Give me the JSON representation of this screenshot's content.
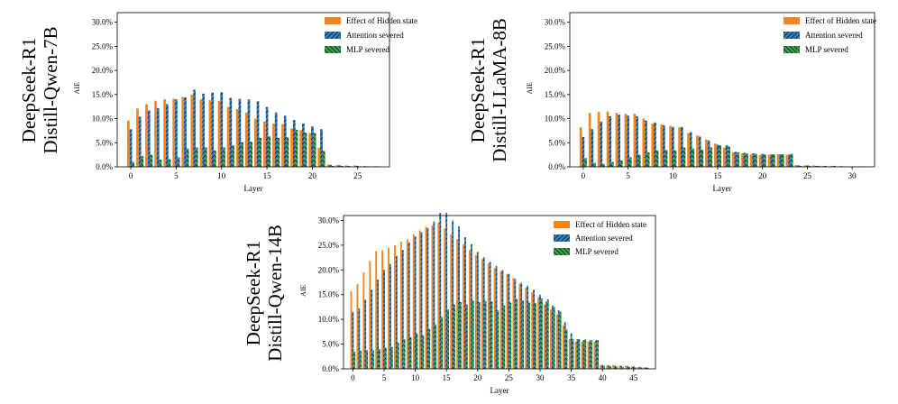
{
  "colors": {
    "hidden": "#f5841f",
    "attention": "#2f7fc1",
    "mlp": "#36a34a",
    "hatch": "#1a1a1a",
    "axis": "#000000"
  },
  "chart_data": [
    {
      "id": "qwen7b",
      "type": "bar",
      "model_label_line1": "DeepSeek-R1",
      "model_label_line2": "Distill-Qwen-7B",
      "xlabel": "Layer",
      "ylabel": "AIE",
      "ylim": [
        0,
        0.32
      ],
      "yticks": [
        0,
        0.05,
        0.1,
        0.15,
        0.2,
        0.25,
        0.3
      ],
      "ytick_labels": [
        "0.0%",
        "5.0%",
        "10.0%",
        "15.0%",
        "20.0%",
        "25.0%",
        "30.0%"
      ],
      "xlim": [
        -1.5,
        28.5
      ],
      "xticks": [
        0,
        5,
        10,
        15,
        20,
        25
      ],
      "xtick_labels": [
        "0",
        "5",
        "10",
        "15",
        "20",
        "25"
      ],
      "legend": [
        "Effect of Hidden state",
        "Attention severed",
        "MLP severed"
      ],
      "legend_position": "top-right",
      "series": [
        {
          "name": "Effect of Hidden state",
          "values": [
            0.096,
            0.121,
            0.13,
            0.137,
            0.14,
            0.141,
            0.145,
            0.15,
            0.14,
            0.138,
            0.137,
            0.124,
            0.12,
            0.112,
            0.1,
            0.094,
            0.09,
            0.089,
            0.08,
            0.076,
            0.07,
            0.04,
            0.005,
            0.004,
            0.003,
            0.003,
            0.002,
            0.001
          ]
        },
        {
          "name": "Attention severed",
          "values": [
            0.078,
            0.104,
            0.117,
            0.122,
            0.13,
            0.14,
            0.144,
            0.16,
            0.152,
            0.154,
            0.155,
            0.143,
            0.141,
            0.14,
            0.136,
            0.124,
            0.113,
            0.106,
            0.097,
            0.09,
            0.084,
            0.078,
            0.004,
            0.003,
            0.002,
            0.002,
            0.001,
            0.001
          ]
        },
        {
          "name": "MLP severed",
          "values": [
            0.01,
            0.022,
            0.025,
            0.015,
            0.016,
            0.02,
            0.038,
            0.04,
            0.04,
            0.034,
            0.04,
            0.045,
            0.051,
            0.052,
            0.06,
            0.063,
            0.06,
            0.061,
            0.077,
            0.071,
            0.07,
            0.033,
            0.002,
            0.002,
            0.001,
            0.001,
            0.001,
            0.001
          ]
        }
      ]
    },
    {
      "id": "llama8b",
      "type": "bar",
      "model_label_line1": "DeepSeek-R1",
      "model_label_line2": "Distill-LLaMA-8B",
      "xlabel": "Layer",
      "ylabel": "AIE",
      "ylim": [
        0,
        0.32
      ],
      "yticks": [
        0,
        0.05,
        0.1,
        0.15,
        0.2,
        0.25,
        0.3
      ],
      "ytick_labels": [
        "0.0%",
        "5.0%",
        "10.0%",
        "15.0%",
        "20.0%",
        "25.0%",
        "30.0%"
      ],
      "xlim": [
        -1.5,
        32.5
      ],
      "xticks": [
        0,
        5,
        10,
        15,
        20,
        25,
        30
      ],
      "xtick_labels": [
        "0",
        "5",
        "10",
        "15",
        "20",
        "25",
        "30"
      ],
      "legend": [
        "Effect of Hidden state",
        "Attention severed",
        "MLP severed"
      ],
      "legend_position": "top-right",
      "series": [
        {
          "name": "Effect of Hidden state",
          "values": [
            0.082,
            0.112,
            0.114,
            0.115,
            0.112,
            0.11,
            0.11,
            0.1,
            0.09,
            0.088,
            0.085,
            0.082,
            0.07,
            0.065,
            0.057,
            0.048,
            0.04,
            0.03,
            0.028,
            0.026,
            0.025,
            0.025,
            0.026,
            0.025,
            0.004,
            0.003,
            0.003,
            0.002,
            0.002,
            0.002,
            0.001,
            0.001
          ]
        },
        {
          "name": "Attention severed",
          "values": [
            0.062,
            0.078,
            0.094,
            0.105,
            0.108,
            0.106,
            0.105,
            0.096,
            0.092,
            0.086,
            0.083,
            0.083,
            0.072,
            0.063,
            0.055,
            0.046,
            0.045,
            0.031,
            0.029,
            0.028,
            0.027,
            0.026,
            0.026,
            0.026,
            0.003,
            0.003,
            0.002,
            0.002,
            0.002,
            0.001,
            0.001,
            0.001
          ]
        },
        {
          "name": "MLP severed",
          "values": [
            0.018,
            0.008,
            0.006,
            0.01,
            0.013,
            0.02,
            0.025,
            0.03,
            0.034,
            0.035,
            0.034,
            0.04,
            0.038,
            0.036,
            0.04,
            0.045,
            0.042,
            0.03,
            0.028,
            0.027,
            0.026,
            0.026,
            0.026,
            0.027,
            0.002,
            0.002,
            0.002,
            0.001,
            0.001,
            0.001,
            0.001,
            0.001
          ]
        }
      ]
    },
    {
      "id": "qwen14b",
      "type": "bar",
      "model_label_line1": "DeepSeek-R1",
      "model_label_line2": "Distill-Qwen-14B",
      "xlabel": "Layer",
      "ylabel": "AIE",
      "ylim": [
        0,
        0.31
      ],
      "yticks": [
        0,
        0.05,
        0.1,
        0.15,
        0.2,
        0.25,
        0.3
      ],
      "ytick_labels": [
        "0.0%",
        "5.0%",
        "10.0%",
        "15.0%",
        "20.0%",
        "25.0%",
        "30.0%"
      ],
      "xlim": [
        -1.5,
        48.5
      ],
      "xticks": [
        0,
        5,
        10,
        15,
        20,
        25,
        30,
        35,
        40,
        45
      ],
      "xtick_labels": [
        "0",
        "5",
        "10",
        "15",
        "20",
        "25",
        "30",
        "35",
        "40",
        "45"
      ],
      "legend": [
        "Effect of Hidden state",
        "Attention severed",
        "MLP severed"
      ],
      "legend_position": "top-right",
      "series": [
        {
          "name": "Effect of Hidden state",
          "values": [
            0.157,
            0.172,
            0.195,
            0.218,
            0.238,
            0.24,
            0.245,
            0.25,
            0.257,
            0.262,
            0.272,
            0.28,
            0.287,
            0.29,
            0.296,
            0.284,
            0.272,
            0.262,
            0.252,
            0.24,
            0.23,
            0.222,
            0.213,
            0.204,
            0.198,
            0.192,
            0.184,
            0.172,
            0.164,
            0.155,
            0.145,
            0.13,
            0.12,
            0.11,
            0.088,
            0.06,
            0.055,
            0.055,
            0.055,
            0.055,
            0.008,
            0.007,
            0.007,
            0.006,
            0.006,
            0.005,
            0.004,
            0.003
          ]
        },
        {
          "name": "Attention severed",
          "values": [
            0.115,
            0.122,
            0.14,
            0.16,
            0.18,
            0.2,
            0.212,
            0.228,
            0.24,
            0.256,
            0.268,
            0.276,
            0.285,
            0.298,
            0.315,
            0.316,
            0.3,
            0.288,
            0.266,
            0.252,
            0.236,
            0.226,
            0.216,
            0.208,
            0.2,
            0.192,
            0.182,
            0.174,
            0.168,
            0.16,
            0.15,
            0.136,
            0.128,
            0.118,
            0.094,
            0.072,
            0.06,
            0.058,
            0.058,
            0.058,
            0.008,
            0.007,
            0.007,
            0.006,
            0.006,
            0.005,
            0.004,
            0.003
          ]
        },
        {
          "name": "MLP severed",
          "values": [
            0.035,
            0.037,
            0.038,
            0.037,
            0.04,
            0.043,
            0.044,
            0.053,
            0.06,
            0.064,
            0.072,
            0.068,
            0.08,
            0.09,
            0.105,
            0.12,
            0.13,
            0.135,
            0.13,
            0.138,
            0.135,
            0.137,
            0.136,
            0.118,
            0.128,
            0.134,
            0.141,
            0.138,
            0.134,
            0.133,
            0.142,
            0.14,
            0.125,
            0.115,
            0.08,
            0.06,
            0.06,
            0.06,
            0.058,
            0.058,
            0.006,
            0.005,
            0.005,
            0.004,
            0.004,
            0.003,
            0.003,
            0.002
          ]
        }
      ]
    }
  ]
}
